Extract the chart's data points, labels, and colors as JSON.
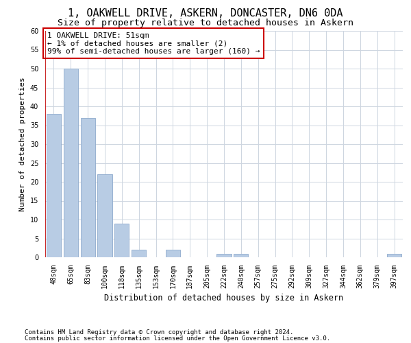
{
  "title": "1, OAKWELL DRIVE, ASKERN, DONCASTER, DN6 0DA",
  "subtitle": "Size of property relative to detached houses in Askern",
  "xlabel": "Distribution of detached houses by size in Askern",
  "ylabel": "Number of detached properties",
  "categories": [
    "48sqm",
    "65sqm",
    "83sqm",
    "100sqm",
    "118sqm",
    "135sqm",
    "153sqm",
    "170sqm",
    "187sqm",
    "205sqm",
    "222sqm",
    "240sqm",
    "257sqm",
    "275sqm",
    "292sqm",
    "309sqm",
    "327sqm",
    "344sqm",
    "362sqm",
    "379sqm",
    "397sqm"
  ],
  "values": [
    38,
    50,
    37,
    22,
    9,
    2,
    0,
    2,
    0,
    0,
    1,
    1,
    0,
    0,
    0,
    0,
    0,
    0,
    0,
    0,
    1
  ],
  "bar_color": "#b8cce4",
  "bar_edge_color": "#8eaacc",
  "highlight_color": "#c00000",
  "ylim": [
    0,
    60
  ],
  "yticks": [
    0,
    5,
    10,
    15,
    20,
    25,
    30,
    35,
    40,
    45,
    50,
    55,
    60
  ],
  "grid_color": "#cdd5e0",
  "background_color": "#ffffff",
  "annotation_box_text": "1 OAKWELL DRIVE: 51sqm\n← 1% of detached houses are smaller (2)\n99% of semi-detached houses are larger (160) →",
  "annotation_box_color": "#cc0000",
  "footer_line1": "Contains HM Land Registry data © Crown copyright and database right 2024.",
  "footer_line2": "Contains public sector information licensed under the Open Government Licence v3.0.",
  "title_fontsize": 11,
  "subtitle_fontsize": 9.5,
  "xlabel_fontsize": 8.5,
  "ylabel_fontsize": 8,
  "tick_fontsize": 7,
  "ann_fontsize": 8,
  "footer_fontsize": 6.5
}
